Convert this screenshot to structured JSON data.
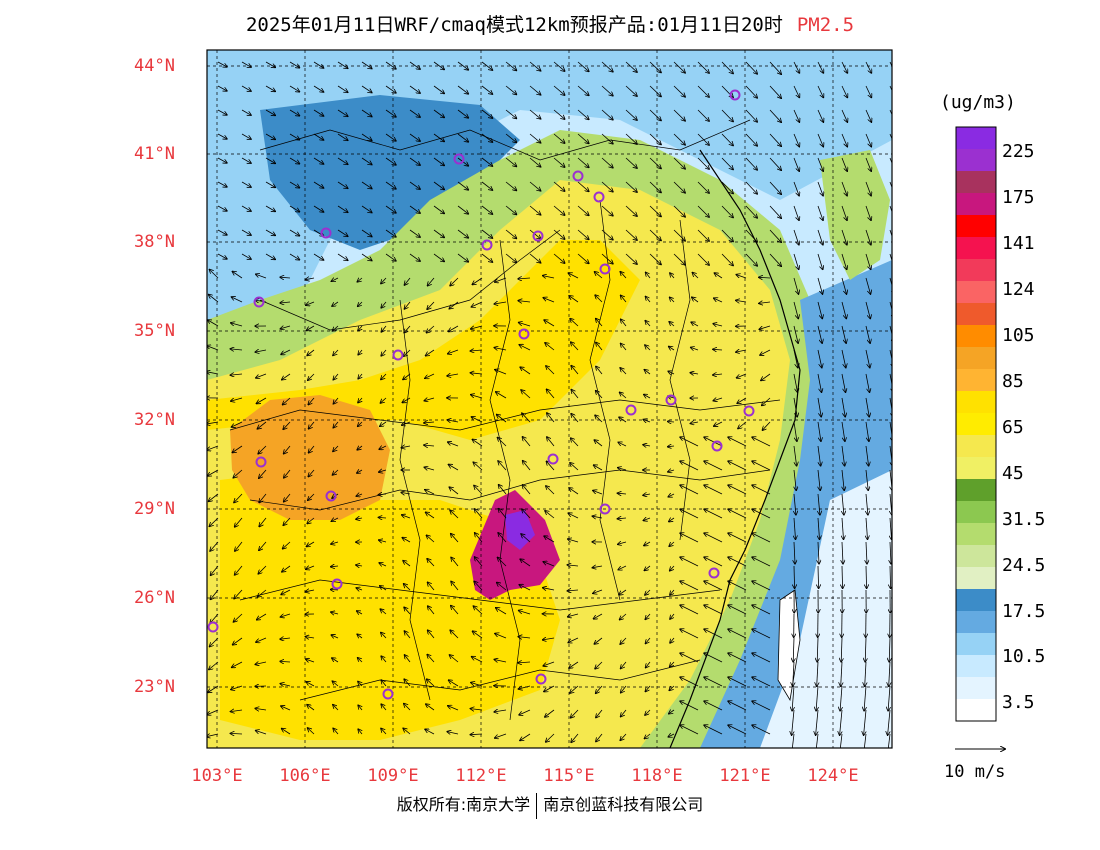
{
  "title": {
    "main": "2025年01月11日WRF/cmaq模式12km预报产品:01月11日20时",
    "species": "PM2.5"
  },
  "lat_labels": [
    "44°N",
    "41°N",
    "38°N",
    "35°N",
    "32°N",
    "29°N",
    "26°N",
    "23°N"
  ],
  "lon_labels": [
    "103°E",
    "106°E",
    "109°E",
    "112°E",
    "115°E",
    "118°E",
    "121°E",
    "124°E"
  ],
  "colorbar": {
    "unit": "(ug/m3)",
    "labels": [
      "225",
      "175",
      "141",
      "124",
      "105",
      "85",
      "65",
      "45",
      "31.5",
      "24.5",
      "17.5",
      "10.5",
      "3.5"
    ],
    "colors": [
      "#8a2be2",
      "#9b30d0",
      "#a8325e",
      "#c8177e",
      "#ff0000",
      "#f5124f",
      "#f23a5a",
      "#fa6464",
      "#ef5a2c",
      "#ff8c00",
      "#f5a425",
      "#ffb432",
      "#ffe100",
      "#ffec00",
      "#f5e84e",
      "#f0f064",
      "#5fa02b",
      "#8cc850",
      "#b4dc6e",
      "#cde69b",
      "#e1f0c3",
      "#3c8cc8",
      "#64aae1",
      "#96d2f5",
      "#c8eaff",
      "#e4f4ff",
      "#ffffff"
    ]
  },
  "wind_reference": {
    "label": "10 m/s"
  },
  "copyright": {
    "left": "版权所有:南京大学",
    "right": "南京创蓝科技有限公司"
  },
  "palette": {
    "accent_red": "#e8383d",
    "station_marker": "#9b30d0"
  },
  "stations_count_visible": 24
}
